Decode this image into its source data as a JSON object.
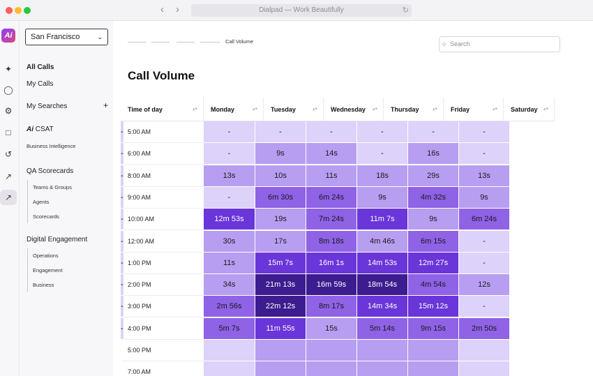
{
  "window": {
    "title": "Dialpad — Work Beautifully"
  },
  "rail": {
    "logo": "Ai",
    "icons": [
      "sparkle-icon",
      "user-icon",
      "gear-icon",
      "building-icon",
      "history-icon",
      "trend-icon",
      "analytics-icon"
    ]
  },
  "sidebar": {
    "location": "San Francisco",
    "items": {
      "all_calls": "All Calls",
      "my_calls": "My Calls",
      "my_searches": "My Searches",
      "csat": "CSAT",
      "business_intelligence": "Business Intelligence",
      "qa_scorecards": "QA Scorecards",
      "teams_groups": "Teams & Groups",
      "agents": "Agents",
      "scorecards": "Scorecards",
      "digital_engagement": "Digital Engagement",
      "operations": "Operations",
      "engagement": "Engagement",
      "business": "Business"
    }
  },
  "main": {
    "breadcrumb_current": "Call Volume",
    "search_placeholder": "Search",
    "title": "Call Volume"
  },
  "table": {
    "headers": [
      "Time of day",
      "Monday",
      "Tuesday",
      "Wednesday",
      "Thursday",
      "Friday",
      "Saturday"
    ],
    "rows": [
      {
        "time": "5:00 AM",
        "cells": [
          "-",
          "-",
          "-",
          "-",
          "-",
          "-",
          "-"
        ]
      },
      {
        "time": "6:00 AM",
        "cells": [
          "-",
          "9s",
          "14s",
          "-",
          "16s",
          "-",
          "-"
        ]
      },
      {
        "time": "8:00 AM",
        "cells": [
          "13s",
          "10s",
          "11s",
          "18s",
          "29s",
          "13s",
          "-"
        ]
      },
      {
        "time": "9:00 AM",
        "cells": [
          "-",
          "6m 30s",
          "6m 24s",
          "9s",
          "4m 32s",
          "9s",
          "-"
        ]
      },
      {
        "time": "10:00 AM",
        "cells": [
          "12m 53s",
          "19s",
          "7m 24s",
          "11m 7s",
          "9s",
          "6m 24s",
          "-"
        ]
      },
      {
        "time": "12:00 AM",
        "cells": [
          "30s",
          "17s",
          "8m 18s",
          "4m 46s",
          "6m 15s",
          "-",
          "-"
        ]
      },
      {
        "time": "1:00 PM",
        "cells": [
          "11s",
          "15m 7s",
          "16m 1s",
          "14m 53s",
          "12m 27s",
          "-",
          "-"
        ]
      },
      {
        "time": "2:00 PM",
        "cells": [
          "34s",
          "21m 13s",
          "16m 59s",
          "18m 54s",
          "4m 54s",
          "12s",
          "-"
        ]
      },
      {
        "time": "3:00 PM",
        "cells": [
          "2m 56s",
          "22m 12s",
          "8m 17s",
          "14m 34s",
          "15m 12s",
          "-",
          "-"
        ]
      },
      {
        "time": "4:00 PM",
        "cells": [
          "5m 7s",
          "11m 55s",
          "15s",
          "5m 14s",
          "9m 15s",
          "2m 50s",
          "-"
        ]
      },
      {
        "time": "5:00 PM",
        "cells": [
          "",
          "",
          "",
          "",
          "",
          "",
          ""
        ]
      },
      {
        "time": "7:00 AM",
        "cells": [
          "",
          "",
          "",
          "",
          "",
          "",
          ""
        ]
      }
    ],
    "levels": [
      [
        1,
        1,
        1,
        1,
        1,
        1,
        1
      ],
      [
        1,
        2,
        2,
        1,
        2,
        1,
        1
      ],
      [
        2,
        2,
        2,
        2,
        2,
        2,
        1
      ],
      [
        1,
        3,
        3,
        2,
        3,
        2,
        1
      ],
      [
        4,
        2,
        3,
        4,
        2,
        3,
        1
      ],
      [
        2,
        2,
        3,
        2,
        3,
        1,
        1
      ],
      [
        2,
        4,
        4,
        4,
        4,
        1,
        1
      ],
      [
        2,
        5,
        5,
        5,
        3,
        2,
        1
      ],
      [
        3,
        5,
        3,
        4,
        4,
        1,
        1
      ],
      [
        3,
        4,
        2,
        3,
        3,
        3,
        1
      ],
      [
        1,
        2,
        2,
        2,
        2,
        1,
        1
      ],
      [
        1,
        2,
        2,
        2,
        2,
        1,
        1
      ]
    ],
    "palette": [
      "#f3f0fd",
      "#ddd2fa",
      "#b79ef1",
      "#8f62e6",
      "#6a35d9",
      "#3d1c8f"
    ]
  }
}
